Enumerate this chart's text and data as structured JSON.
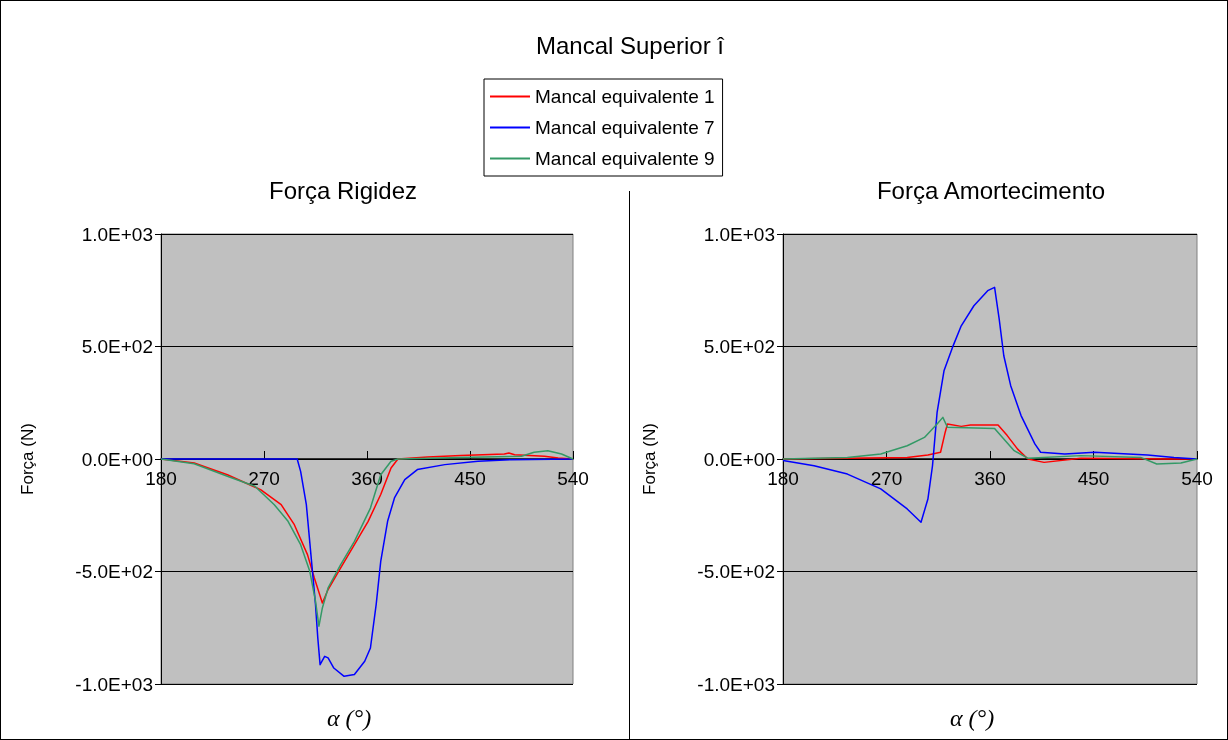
{
  "chart_data": [
    {
      "type": "line",
      "title": "Força Rigidez",
      "xlabel": "α (°)",
      "ylabel": "Força (N)",
      "annotations": [
        "Mancal Superior î"
      ],
      "xlim": [
        180,
        540
      ],
      "xticks": [
        180,
        270,
        360,
        450,
        540
      ],
      "ylim": [
        -1000,
        1000
      ],
      "yticks": [
        {
          "value": -1000,
          "label": "-1.0E+03"
        },
        {
          "value": -500,
          "label": "-5.0E+02"
        },
        {
          "value": 0,
          "label": "0.0E+00"
        },
        {
          "value": 500,
          "label": "5.0E+02"
        },
        {
          "value": 1000,
          "label": "1.0E+03"
        }
      ],
      "grid": "y",
      "legend": "top",
      "marker": "none",
      "line_style": "solid",
      "series": [
        {
          "name": "Mancal equivalente 1",
          "color": "#ff0000",
          "x": [
            180,
            209,
            238,
            267,
            285,
            296.5,
            308,
            314,
            321,
            326,
            337,
            349,
            361,
            372,
            381,
            387,
            413,
            442,
            480,
            484,
            489,
            515,
            527,
            540
          ],
          "values": [
            0,
            -18,
            -70,
            -136,
            -203,
            -292,
            -425,
            -529,
            -640,
            -580,
            -484,
            -381,
            -277,
            -158,
            -40,
            0,
            9,
            16,
            22,
            27,
            19,
            12,
            4,
            0
          ]
        },
        {
          "name": "Mancal equivalente 7",
          "color": "#0000ff",
          "x": [
            180,
            299,
            302,
            307,
            311,
            315,
            317,
            319,
            323,
            326,
            331,
            340,
            349,
            358,
            363,
            368,
            372,
            378,
            384,
            393,
            404,
            428,
            457,
            486,
            540
          ],
          "values": [
            0,
            0,
            -55,
            -203,
            -425,
            -647,
            -795,
            -914,
            -877,
            -884,
            -929,
            -966,
            -958,
            -899,
            -840,
            -647,
            -455,
            -277,
            -173,
            -92,
            -47,
            -25,
            -10,
            -3,
            0
          ]
        },
        {
          "name": "Mancal equivalente 9",
          "color": "#339966",
          "x": [
            180,
            209,
            238,
            262,
            279,
            291,
            302,
            310,
            315,
            318,
            321,
            326,
            337,
            349,
            363,
            372,
            381,
            387,
            442,
            495,
            506,
            518,
            530,
            540
          ],
          "values": [
            0,
            -21,
            -77,
            -121,
            -203,
            -277,
            -381,
            -499,
            -632,
            -743,
            -662,
            -573,
            -469,
            -366,
            -218,
            -70,
            -10,
            0,
            7,
            12,
            30,
            37,
            22,
            0
          ]
        }
      ]
    },
    {
      "type": "line",
      "title": "Força Amortecimento",
      "xlabel": "α (°)",
      "ylabel": "Força (N)",
      "xlim": [
        180,
        540
      ],
      "xticks": [
        180,
        270,
        360,
        450,
        540
      ],
      "ylim": [
        -1000,
        1000
      ],
      "yticks": [
        {
          "value": -1000,
          "label": "-1.0E+03"
        },
        {
          "value": -500,
          "label": "-5.0E+02"
        },
        {
          "value": 0,
          "label": "0.0E+00"
        },
        {
          "value": 500,
          "label": "5.0E+02"
        },
        {
          "value": 1000,
          "label": "1.0E+03"
        }
      ],
      "grid": "y",
      "marker": "none",
      "line_style": "solid",
      "series": [
        {
          "color": "#ff0000",
          "x": [
            180,
            288,
            306,
            317,
            321,
            323,
            335,
            343,
            367,
            375,
            384,
            393,
            407,
            439,
            512,
            540
          ],
          "values": [
            0,
            7,
            18,
            30,
            118,
            156,
            145,
            151,
            151,
            104,
            44,
            0,
            -15,
            3,
            0,
            0
          ]
        },
        {
          "color": "#0000ff",
          "x": [
            180,
            207,
            236,
            265,
            288,
            300,
            306,
            310,
            314,
            320,
            328,
            335,
            346,
            358,
            364,
            368,
            372,
            378,
            387,
            399,
            404,
            425,
            451,
            497,
            520,
            540
          ],
          "values": [
            -7,
            -30,
            -67,
            -133,
            -222,
            -281,
            -178,
            -30,
            207,
            392,
            504,
            592,
            681,
            748,
            763,
            622,
            459,
            326,
            193,
            67,
            30,
            22,
            30,
            18,
            7,
            0
          ]
        },
        {
          "color": "#339966",
          "x": [
            180,
            236,
            265,
            288,
            303,
            314,
            319,
            323,
            364,
            372,
            381,
            393,
            439,
            491,
            505,
            526,
            540
          ],
          "values": [
            0,
            7,
            22,
            59,
            96,
            156,
            185,
            141,
            136,
            89,
            37,
            3,
            15,
            7,
            -22,
            -18,
            0
          ]
        }
      ]
    }
  ]
}
